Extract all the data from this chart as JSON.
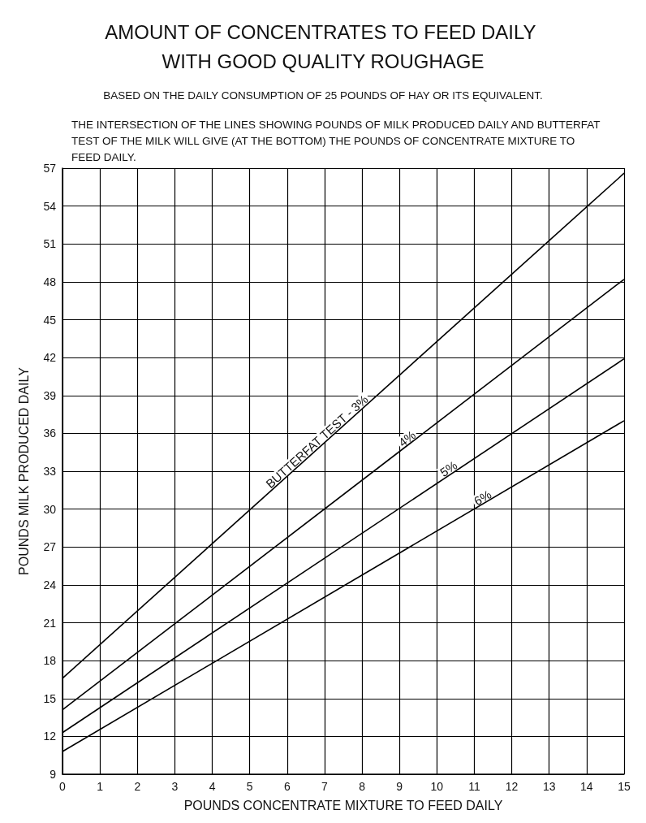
{
  "chart_data": {
    "type": "line",
    "title": "AMOUNT OF CONCENTRATES TO FEED DAILY WITH GOOD QUALITY ROUGHAGE",
    "subtitle": "BASED ON THE DAILY CONSUMPTION OF 25 POUNDS OF HAY OR ITS EQUIVALENT.",
    "xlabel": "POUNDS CONCENTRATE MIXTURE TO FEED DAILY",
    "ylabel": "POUNDS MILK PRODUCED DAILY",
    "annotations": [
      "THE INTERSECTION OF THE LINES SHOWING POUNDS OF MILK PRODUCED DAILY AND BUTTERFAT TEST OF THE MILK WILL GIVE (AT THE BOTTOM) THE POUNDS OF CONCENTRATE MIXTURE TO FEED DAILY.",
      {
        "text": "BUTTERFAT TEST - 3%",
        "x": 6.9,
        "y": 35.0
      },
      {
        "text": "4%",
        "x": 9.3,
        "y": 35.2
      },
      {
        "text": "5%",
        "x": 10.4,
        "y": 32.8
      },
      {
        "text": "6%",
        "x": 11.3,
        "y": 30.5
      }
    ],
    "series": [
      {
        "color": "#000000",
        "values": [
          16.6,
          56.6
        ]
      },
      {
        "color": "#000000",
        "values": [
          14.1,
          48.2
        ]
      },
      {
        "color": "#000000",
        "values": [
          12.3,
          41.9
        ]
      },
      {
        "color": "#000000",
        "values": [
          10.8,
          37.0
        ]
      }
    ],
    "x": [
      0,
      15
    ],
    "xlim": [
      0,
      15
    ],
    "xticks": [
      0,
      1,
      2,
      3,
      4,
      5,
      6,
      7,
      8,
      9,
      10,
      11,
      12,
      13,
      14,
      15
    ],
    "ylim": [
      9,
      57
    ],
    "yticks": [
      9,
      12,
      15,
      18,
      21,
      24,
      27,
      30,
      33,
      36,
      39,
      42,
      45,
      48,
      51,
      54,
      57
    ],
    "grid": true,
    "marker": "none",
    "line_style": "solid"
  }
}
